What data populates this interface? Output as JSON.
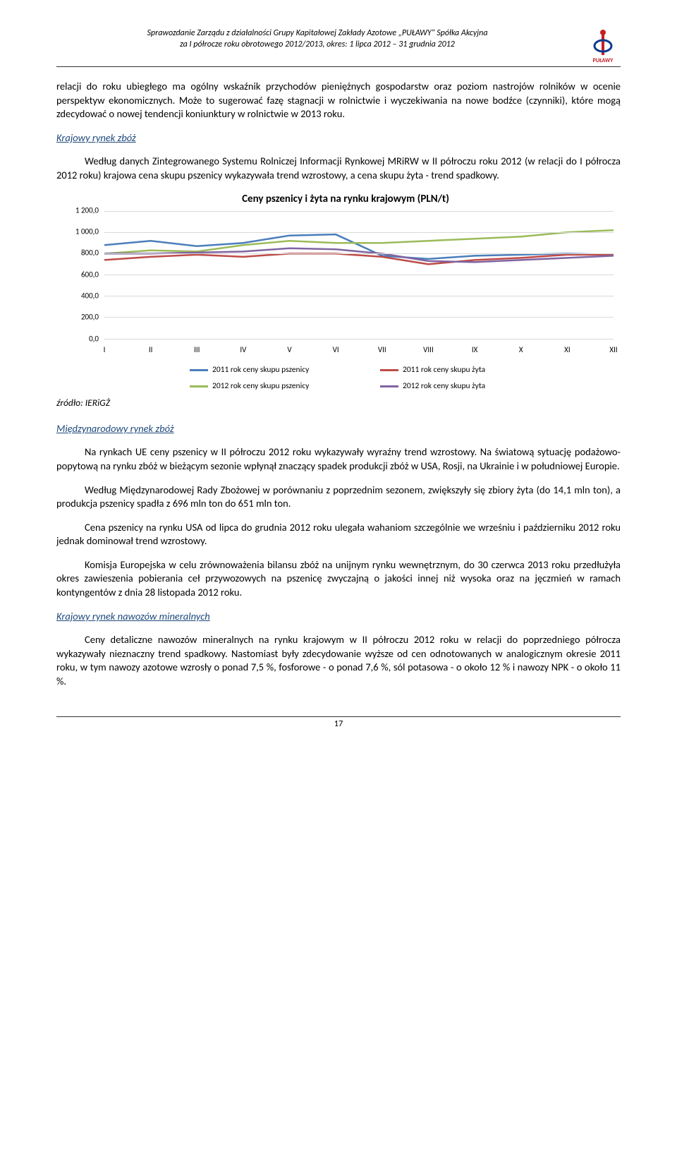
{
  "header": {
    "line1": "Sprawozdanie Zarządu z działalności Grupy Kapitałowej Zakłady Azotowe „PUŁAWY\" Spółka Akcyjna",
    "line2": "za I półrocze roku obrotowego 2012/2013, okres: 1 lipca 2012 – 31 grudnia 2012",
    "logo_text": "PUŁAWY",
    "logo_color_primary": "#c62026",
    "logo_color_secondary": "#0b3a8f"
  },
  "paragraphs": {
    "p1": "relacji do roku ubiegłego ma ogólny wskaźnik przychodów pieniężnych gospodarstw oraz poziom nastrojów rolników w ocenie perspektyw ekonomicznych. Może to sugerować fazę stagnacji w rolnictwie i wyczekiwania na nowe bodźce (czynniki), które mogą zdecydować o nowej tendencji koniunktury w rolnictwie w 2013 roku.",
    "p2": "Według danych Zintegrowanego Systemu Rolniczej Informacji Rynkowej MRiRW w II półroczu roku 2012 (w relacji do I półrocza 2012 roku) krajowa cena skupu pszenicy wykazywała trend wzrostowy, a cena skupu żyta - trend spadkowy.",
    "p3": "Na rynkach UE ceny pszenicy w II półroczu 2012 roku wykazywały wyraźny trend wzrostowy. Na światową sytuację podażowo-popytową na rynku zbóż w bieżącym sezonie wpłynął znaczący spadek produkcji zbóż w USA, Rosji, na Ukrainie i w południowej Europie.",
    "p4": "Według Międzynarodowej Rady Zbożowej w porównaniu z poprzednim sezonem, zwiększyły się zbiory żyta (do 14,1 mln ton), a produkcja pszenicy spadła z 696 mln ton do 651 mln ton.",
    "p5": "Cena pszenicy na rynku USA od lipca do grudnia 2012 roku ulegała wahaniom szczególnie we wrześniu i październiku 2012 roku jednak dominował trend wzrostowy.",
    "p6": "Komisja Europejska w celu zrównoważenia bilansu zbóż na unijnym rynku wewnętrznym, do 30 czerwca 2013 roku przedłużyła okres zawieszenia pobierania ceł przywozowych na pszenicę zwyczajną o jakości innej niż wysoka oraz na jęczmień w ramach kontyngentów z dnia 28 listopada 2012 roku.",
    "p7": "Ceny detaliczne nawozów mineralnych na rynku krajowym w II półroczu 2012 roku w relacji do poprzedniego półrocza wykazywały nieznaczny trend spadkowy. Nastomiast były zdecydowanie wyższe od cen odnotowanych w analogicznym okresie 2011 roku, w tym nawozy azotowe wzrosły o ponad 7,5 %, fosforowe - o ponad 7,6 %, sól potasowa - o około 12 % i nawozy NPK - o około 11 %."
  },
  "sections": {
    "s1": "Krajowy rynek zbóż",
    "s2": "Międzynarodowy rynek zbóż",
    "s3": "Krajowy rynek nawozów mineralnych"
  },
  "chart": {
    "title": "Ceny pszenicy i żyta na rynku krajowym (PLN/t)",
    "type": "line",
    "months": [
      "I",
      "II",
      "III",
      "IV",
      "V",
      "VI",
      "VII",
      "VIII",
      "IX",
      "X",
      "XI",
      "XII"
    ],
    "ylim": [
      0,
      1200
    ],
    "ytick_step": 200,
    "ytick_labels": [
      "0,0",
      "200,0",
      "400,0",
      "600,0",
      "800,0",
      "1 000,0",
      "1 200,0"
    ],
    "background_color": "#ffffff",
    "grid_color": "#d9d9d9",
    "line_width": 2.5,
    "series": [
      {
        "name": "2011 rok ceny skupu pszenicy",
        "color": "#4a7ebb",
        "values": [
          880,
          920,
          870,
          900,
          970,
          980,
          780,
          750,
          780,
          790,
          800,
          790
        ]
      },
      {
        "name": "2011 rok ceny skupu żyta",
        "color": "#be4b48",
        "values": [
          740,
          770,
          790,
          770,
          800,
          800,
          770,
          700,
          740,
          760,
          790,
          790
        ]
      },
      {
        "name": "2012 rok ceny skupu pszenicy",
        "color": "#9bbb59",
        "values": [
          800,
          830,
          820,
          880,
          920,
          900,
          900,
          920,
          940,
          960,
          1000,
          1020
        ]
      },
      {
        "name": "2012 rok ceny skupu żyta",
        "color": "#8064a2",
        "values": [
          800,
          800,
          810,
          820,
          850,
          840,
          800,
          730,
          720,
          740,
          760,
          780
        ]
      }
    ],
    "legend_font_size": 11.5,
    "axis_font_size": 11
  },
  "source_label": "źródło: IERiGŻ",
  "page_number": "17"
}
